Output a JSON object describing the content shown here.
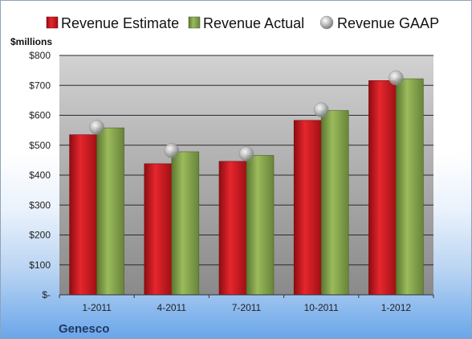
{
  "chart_data": {
    "type": "bar",
    "title": "",
    "ylabel": "$millions",
    "xlabel": "",
    "footer_label": "Genesco",
    "categories": [
      "1-2011",
      "4-2011",
      "7-2011",
      "10-2011",
      "1-2012"
    ],
    "y_ticks": [
      {
        "value": 0,
        "label": "$-"
      },
      {
        "value": 100,
        "label": "$100"
      },
      {
        "value": 200,
        "label": "$200"
      },
      {
        "value": 300,
        "label": "$300"
      },
      {
        "value": 400,
        "label": "$400"
      },
      {
        "value": 500,
        "label": "$500"
      },
      {
        "value": 600,
        "label": "$600"
      },
      {
        "value": 700,
        "label": "$700"
      },
      {
        "value": 800,
        "label": "$800"
      }
    ],
    "ylim": [
      0,
      800
    ],
    "grid": true,
    "legend_position": "top",
    "series": [
      {
        "name": "Revenue Estimate",
        "kind": "bar",
        "color": "#c0161c",
        "values": [
          535,
          438,
          446,
          583,
          716
        ]
      },
      {
        "name": "Revenue Actual",
        "kind": "bar",
        "color": "#7f9d45",
        "values": [
          558,
          478,
          466,
          616,
          722
        ]
      },
      {
        "name": "Revenue GAAP",
        "kind": "marker",
        "color": "#b8b8b8",
        "values": [
          560,
          482,
          471,
          618,
          725
        ]
      }
    ]
  }
}
